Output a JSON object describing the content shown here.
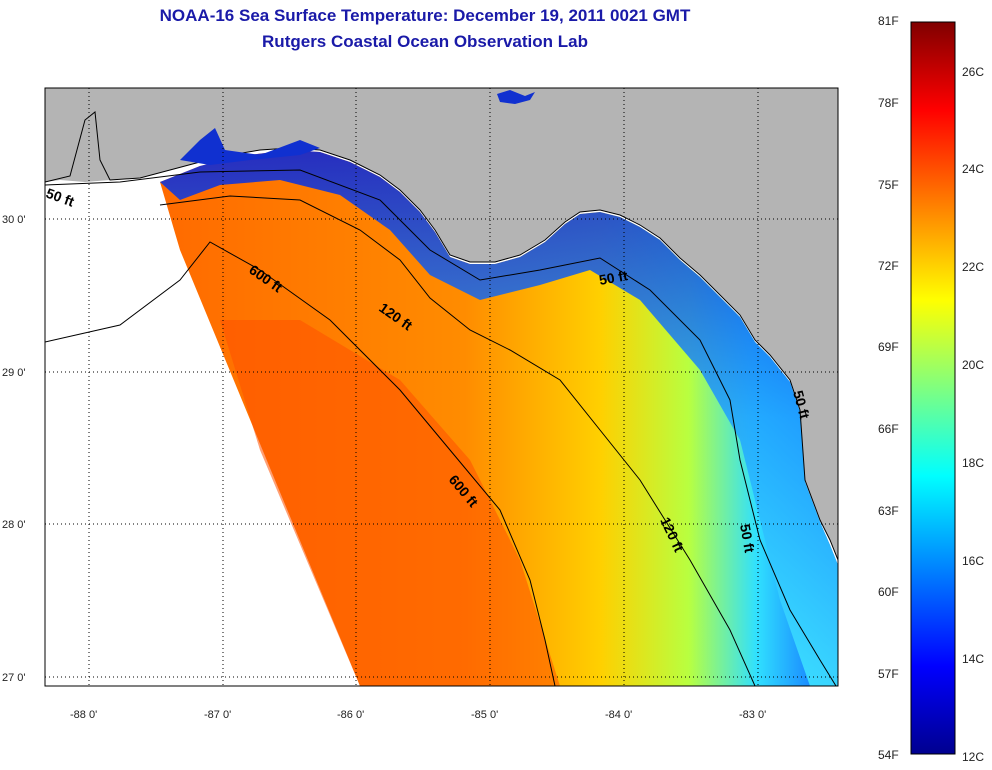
{
  "header": {
    "title": "NOAA-16 Sea Surface Temperature:  December 19, 2011 0021 GMT",
    "subtitle": "Rutgers Coastal Ocean Observation Lab"
  },
  "map": {
    "lat_ticks": [
      "27 0'",
      "28 0'",
      "29 0'",
      "30 0'"
    ],
    "lon_ticks": [
      "-88 0'",
      "-87 0'",
      "-86 0'",
      "-85 0'",
      "-84 0'",
      "-83 0'"
    ],
    "colors": {
      "land": "#b4b4b4",
      "no_data": "#ffffff",
      "coastline": "#000000"
    },
    "contour_labels": [
      "50 ft",
      "600 ft",
      "120 ft",
      "50 ft",
      "600 ft",
      "120 ft",
      "50 ft",
      "50 ft"
    ]
  },
  "colorbar": {
    "fahrenheit_labels": [
      "81F",
      "78F",
      "75F",
      "72F",
      "69F",
      "66F",
      "63F",
      "60F",
      "57F",
      "54F"
    ],
    "celsius_labels": [
      "26C",
      "24C",
      "22C",
      "20C",
      "18C",
      "16C",
      "14C",
      "12C"
    ],
    "colors": [
      "#00008f",
      "#0000ff",
      "#00ffff",
      "#ffff00",
      "#ff0000",
      "#800000"
    ]
  }
}
